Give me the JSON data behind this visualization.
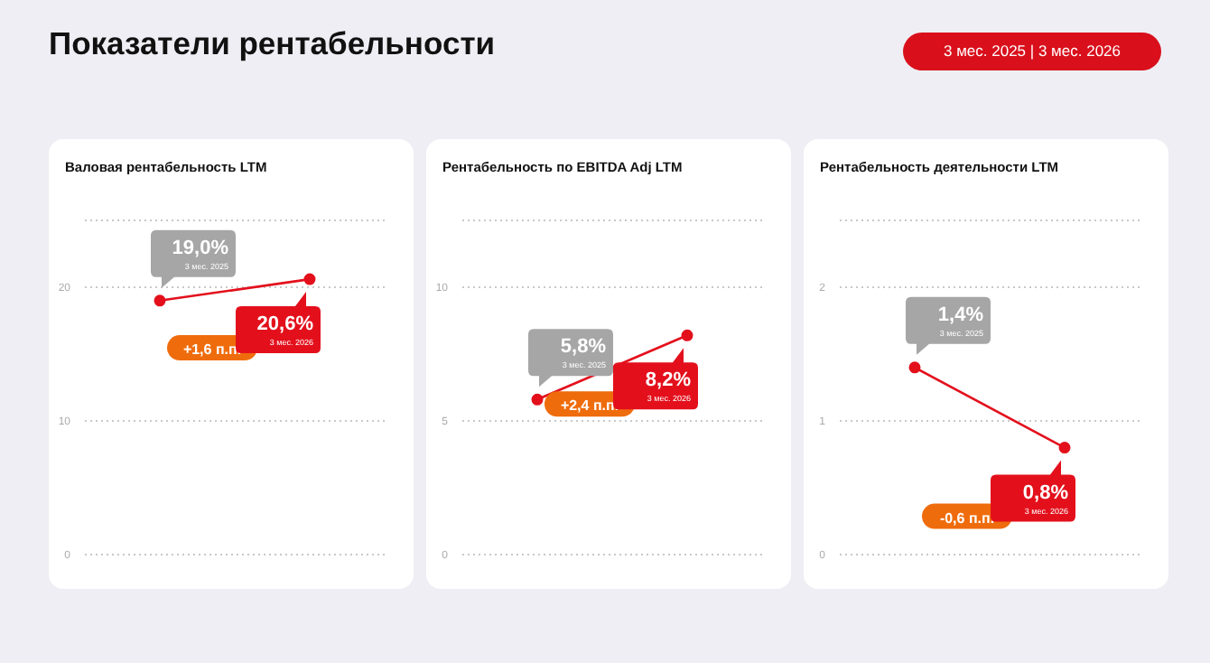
{
  "chart_data": [
    {
      "type": "other",
      "title": "Показатели рентабельности",
      "subtitle": "3 мес. 2025 | 3 мес. 2026"
    },
    {
      "type": "line",
      "title": "Валовая рентабельность LTM",
      "categories": [
        "3 мес. 2025",
        "3 мес. 2026"
      ],
      "values": [
        19.0,
        20.6
      ],
      "value_labels": [
        "19,0%",
        "20,6%"
      ],
      "color": "#e3101c",
      "ylim": [
        0,
        25
      ],
      "yticks": [
        0,
        10,
        20
      ],
      "grid": "y",
      "marker": "circle",
      "tick_labels": "y",
      "annotations": [
        "+1,6 п.п."
      ]
    },
    {
      "type": "line",
      "title": "Рентабельность по EBITDA Adj LTM",
      "categories": [
        "3 мес. 2025",
        "3 мес. 2026"
      ],
      "values": [
        5.8,
        8.2
      ],
      "value_labels": [
        "5,8%",
        "8,2%"
      ],
      "color": "#e3101c",
      "ylim": [
        0,
        12.5
      ],
      "yticks": [
        0,
        5,
        10
      ],
      "grid": "y",
      "marker": "circle",
      "tick_labels": "y",
      "annotations": [
        "+2,4 п.п."
      ]
    },
    {
      "type": "line",
      "title": "Рентабельность деятельности LTM",
      "categories": [
        "3 мес. 2025",
        "3 мес. 2026"
      ],
      "values": [
        1.4,
        0.8
      ],
      "value_labels": [
        "1,4%",
        "0,8%"
      ],
      "color": "#e3101c",
      "ylim": [
        0,
        2.5
      ],
      "yticks": [
        0,
        1,
        2
      ],
      "grid": "y",
      "marker": "circle",
      "tick_labels": "y",
      "annotations": [
        "-0,6 п.п."
      ]
    }
  ]
}
